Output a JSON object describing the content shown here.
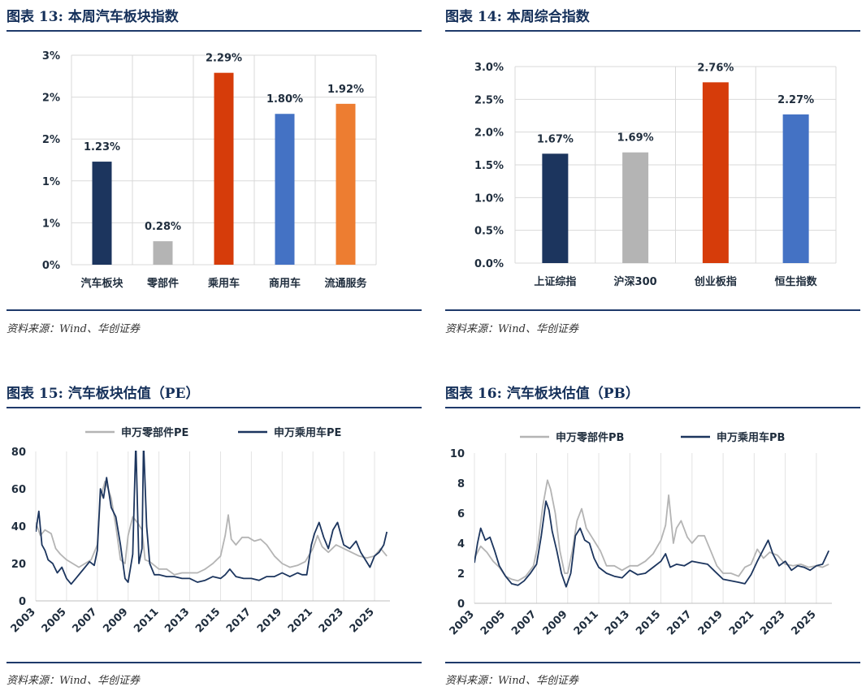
{
  "source_note": "资料来源：Wind、华创证券",
  "chart_data": [
    {
      "type": "bar",
      "title": "图表 13:  本周汽车板块指数",
      "categories": [
        "汽车板块",
        "零部件",
        "乘用车",
        "商用车",
        "流通服务"
      ],
      "values": [
        1.23,
        0.28,
        2.29,
        1.8,
        1.92
      ],
      "data_labels": [
        "1.23%",
        "0.28%",
        "2.29%",
        "1.80%",
        "1.92%"
      ],
      "colors": [
        "#1c355e",
        "#b4b4b4",
        "#d63c0a",
        "#4472c4",
        "#ed7d31"
      ],
      "ylim": [
        0,
        2.5
      ],
      "yticks": [
        0,
        0.5,
        1,
        1.5,
        2,
        2.5
      ],
      "ytick_labels": [
        "0%",
        "1%",
        "1%",
        "2%",
        "2%",
        "3%"
      ],
      "grid": true
    },
    {
      "type": "bar",
      "title": "图表 14:  本周综合指数",
      "categories": [
        "上证综指",
        "沪深300",
        "创业板指",
        "恒生指数"
      ],
      "values": [
        1.67,
        1.69,
        2.76,
        2.27
      ],
      "data_labels": [
        "1.67%",
        "1.69%",
        "2.76%",
        "2.27%"
      ],
      "colors": [
        "#1c355e",
        "#b4b4b4",
        "#d63c0a",
        "#4472c4"
      ],
      "ylim": [
        0,
        3.0
      ],
      "yticks": [
        0,
        0.5,
        1.0,
        1.5,
        2.0,
        2.5,
        3.0
      ],
      "ytick_labels": [
        "0.0%",
        "0.5%",
        "1.0%",
        "1.5%",
        "2.0%",
        "2.5%",
        "3.0%"
      ],
      "grid": true
    },
    {
      "type": "line",
      "title": "图表 15:  汽车板块估值（PE）",
      "xlim": [
        2003,
        2026
      ],
      "xticks": [
        "2003",
        "2005",
        "2007",
        "2009",
        "2011",
        "2013",
        "2015",
        "2017",
        "2019",
        "2021",
        "2023",
        "2025"
      ],
      "ylim": [
        0,
        80
      ],
      "yticks": [
        0,
        20,
        40,
        60,
        80
      ],
      "legend_position": "top",
      "series": [
        {
          "name": "申万零部件PE",
          "color": "#b4b4b4",
          "x": [
            2003.0,
            2003.3,
            2003.6,
            2004.0,
            2004.3,
            2004.6,
            2005.0,
            2005.4,
            2005.8,
            2006.2,
            2006.6,
            2007.0,
            2007.2,
            2007.5,
            2007.7,
            2007.9,
            2008.2,
            2008.5,
            2008.8,
            2009.0,
            2009.3,
            2009.6,
            2009.9,
            2010.1,
            2010.4,
            2010.7,
            2011.0,
            2011.5,
            2012.0,
            2012.5,
            2013.0,
            2013.5,
            2014.0,
            2014.5,
            2015.0,
            2015.3,
            2015.5,
            2015.7,
            2016.0,
            2016.4,
            2016.8,
            2017.2,
            2017.6,
            2018.0,
            2018.5,
            2019.0,
            2019.5,
            2020.0,
            2020.5,
            2021.0,
            2021.3,
            2021.6,
            2022.0,
            2022.5,
            2023.0,
            2023.5,
            2024.0,
            2024.5,
            2025.0,
            2025.4,
            2025.8
          ],
          "y": [
            42,
            35,
            38,
            36,
            28,
            25,
            22,
            20,
            18,
            20,
            22,
            30,
            55,
            64,
            60,
            55,
            40,
            22,
            20,
            35,
            45,
            42,
            38,
            22,
            21,
            19,
            17,
            17,
            14,
            15,
            15,
            15,
            17,
            20,
            24,
            35,
            46,
            33,
            30,
            34,
            34,
            32,
            33,
            30,
            24,
            20,
            18,
            19,
            21,
            28,
            35,
            29,
            26,
            30,
            28,
            26,
            24,
            23,
            24,
            28,
            24
          ]
        },
        {
          "name": "申万乘用车PE",
          "color": "#1c355e",
          "x": [
            2003.0,
            2003.2,
            2003.4,
            2003.6,
            2003.8,
            2004.1,
            2004.4,
            2004.7,
            2005.0,
            2005.3,
            2005.6,
            2005.9,
            2006.2,
            2006.5,
            2006.8,
            2007.0,
            2007.2,
            2007.4,
            2007.6,
            2007.9,
            2008.2,
            2008.5,
            2008.8,
            2009.0,
            2009.3,
            2009.5,
            2009.7,
            2009.9,
            2010.0,
            2010.2,
            2010.4,
            2010.7,
            2011.0,
            2011.5,
            2012.0,
            2012.5,
            2013.0,
            2013.5,
            2014.0,
            2014.5,
            2015.0,
            2015.3,
            2015.6,
            2016.0,
            2016.5,
            2017.0,
            2017.5,
            2018.0,
            2018.5,
            2019.0,
            2019.5,
            2020.0,
            2020.3,
            2020.6,
            2020.9,
            2021.1,
            2021.4,
            2021.7,
            2022.0,
            2022.3,
            2022.6,
            2023.0,
            2023.4,
            2023.8,
            2024.1,
            2024.4,
            2024.7,
            2025.0,
            2025.3,
            2025.6,
            2025.8
          ],
          "y": [
            37,
            48,
            30,
            27,
            22,
            20,
            15,
            18,
            12,
            9,
            12,
            15,
            18,
            21,
            19,
            27,
            60,
            55,
            66,
            50,
            45,
            30,
            12,
            10,
            25,
            85,
            20,
            28,
            85,
            40,
            20,
            14,
            14,
            13,
            13,
            12,
            12,
            10,
            11,
            13,
            12,
            14,
            17,
            13,
            12,
            12,
            11,
            13,
            13,
            15,
            13,
            15,
            14,
            14,
            30,
            36,
            42,
            34,
            28,
            38,
            42,
            30,
            28,
            32,
            26,
            22,
            18,
            24,
            26,
            30,
            37
          ]
        }
      ]
    },
    {
      "type": "line",
      "title": "图表 16:  汽车板块估值（PB）",
      "xlim": [
        2003,
        2026
      ],
      "xticks": [
        "2003",
        "2005",
        "2007",
        "2009",
        "2011",
        "2013",
        "2015",
        "2017",
        "2019",
        "2021",
        "2023",
        "2025"
      ],
      "ylim": [
        0,
        10
      ],
      "yticks": [
        0,
        2,
        4,
        6,
        8,
        10
      ],
      "legend_position": "top",
      "series": [
        {
          "name": "申万零部件PB",
          "color": "#b4b4b4",
          "x": [
            2003.0,
            2003.4,
            2003.8,
            2004.2,
            2004.6,
            2005.0,
            2005.4,
            2005.8,
            2006.3,
            2006.8,
            2007.1,
            2007.4,
            2007.7,
            2007.9,
            2008.2,
            2008.5,
            2008.8,
            2009.0,
            2009.3,
            2009.6,
            2009.9,
            2010.2,
            2010.5,
            2010.8,
            2011.1,
            2011.5,
            2012.0,
            2012.5,
            2013.0,
            2013.5,
            2014.0,
            2014.5,
            2015.0,
            2015.3,
            2015.5,
            2015.8,
            2016.0,
            2016.3,
            2016.7,
            2017.0,
            2017.4,
            2017.8,
            2018.2,
            2018.6,
            2019.0,
            2019.5,
            2020.0,
            2020.4,
            2020.8,
            2021.2,
            2021.6,
            2022.0,
            2022.5,
            2023.0,
            2023.5,
            2024.0,
            2024.5,
            2025.0,
            2025.4,
            2025.8
          ],
          "y": [
            3.0,
            3.8,
            3.4,
            2.8,
            2.4,
            1.8,
            1.6,
            1.5,
            1.8,
            2.5,
            4.0,
            6.5,
            8.2,
            7.6,
            6.0,
            3.5,
            2.0,
            2.0,
            3.5,
            5.5,
            6.3,
            5.0,
            4.5,
            4.0,
            3.5,
            2.5,
            2.5,
            2.2,
            2.5,
            2.5,
            2.8,
            3.3,
            4.2,
            5.2,
            7.2,
            4.0,
            5.0,
            5.5,
            4.4,
            4.0,
            4.5,
            4.5,
            3.5,
            2.5,
            2.0,
            2.0,
            1.8,
            2.4,
            2.6,
            3.6,
            3.0,
            3.4,
            3.2,
            2.6,
            2.5,
            2.6,
            2.4,
            2.5,
            2.4,
            2.6
          ]
        },
        {
          "name": "申万乘用车PB",
          "color": "#1c355e",
          "x": [
            2003.0,
            2003.2,
            2003.4,
            2003.7,
            2004.0,
            2004.3,
            2004.6,
            2005.0,
            2005.4,
            2005.8,
            2006.2,
            2006.6,
            2007.0,
            2007.3,
            2007.6,
            2007.8,
            2008.0,
            2008.3,
            2008.6,
            2008.9,
            2009.2,
            2009.5,
            2009.8,
            2010.1,
            2010.4,
            2010.7,
            2011.0,
            2011.5,
            2012.0,
            2012.5,
            2013.0,
            2013.5,
            2014.0,
            2014.5,
            2015.0,
            2015.3,
            2015.6,
            2016.0,
            2016.5,
            2017.0,
            2017.5,
            2018.0,
            2018.5,
            2019.0,
            2019.5,
            2020.0,
            2020.4,
            2020.8,
            2021.2,
            2021.6,
            2021.9,
            2022.2,
            2022.6,
            2023.0,
            2023.4,
            2023.8,
            2024.2,
            2024.6,
            2025.0,
            2025.4,
            2025.8
          ],
          "y": [
            2.7,
            4.0,
            5.0,
            4.2,
            4.4,
            3.5,
            2.5,
            1.8,
            1.3,
            1.2,
            1.5,
            2.0,
            2.6,
            4.5,
            6.8,
            6.2,
            4.8,
            3.5,
            2.0,
            1.1,
            2.0,
            4.5,
            5.0,
            4.2,
            4.0,
            3.0,
            2.4,
            2.0,
            1.8,
            1.7,
            2.2,
            1.9,
            2.0,
            2.4,
            2.8,
            3.3,
            2.4,
            2.6,
            2.5,
            2.8,
            2.7,
            2.6,
            2.1,
            1.6,
            1.5,
            1.4,
            1.3,
            1.9,
            2.8,
            3.6,
            4.2,
            3.3,
            2.5,
            2.8,
            2.2,
            2.5,
            2.4,
            2.2,
            2.5,
            2.6,
            3.5
          ]
        }
      ]
    }
  ]
}
